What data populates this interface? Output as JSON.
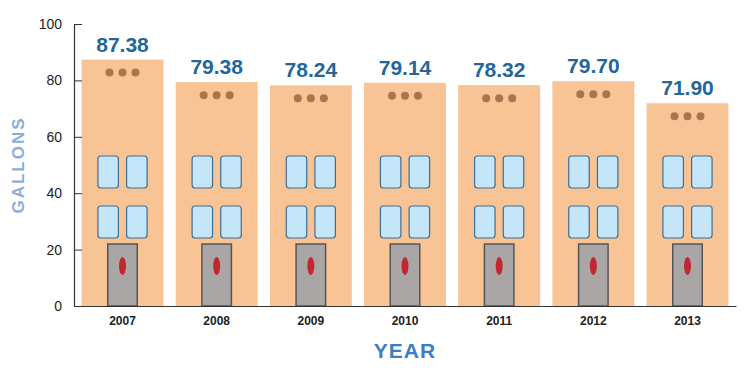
{
  "chart_data": {
    "type": "bar",
    "x_label": "YEAR",
    "y_label": "GALLONS",
    "categories": [
      "2007",
      "2008",
      "2009",
      "2010",
      "2011",
      "2012",
      "2013"
    ],
    "values": [
      87.38,
      79.38,
      78.24,
      79.14,
      78.32,
      79.7,
      71.9
    ],
    "value_labels": [
      "87.38",
      "79.38",
      "78.24",
      "79.14",
      "78.32",
      "79.70",
      "71.90"
    ],
    "color": "#f9c495",
    "ylim": [
      0,
      100
    ],
    "yticks": [
      0,
      20,
      40,
      60,
      80,
      100
    ],
    "grid": false,
    "data_labels": true
  }
}
